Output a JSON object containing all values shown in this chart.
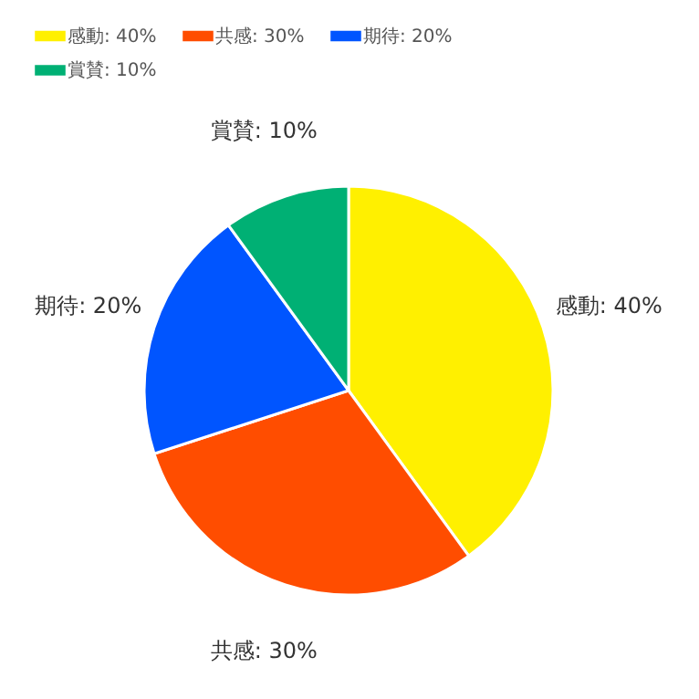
{
  "chart_data": {
    "type": "pie",
    "categories": [
      "感動: 40%",
      "共感: 30%",
      "期待: 20%",
      "賞賛: 10%"
    ],
    "values": [
      40,
      30,
      20,
      10
    ],
    "colors": [
      "#fff000",
      "#ff4d00",
      "#0055ff",
      "#00b074"
    ],
    "legend": "top left"
  }
}
